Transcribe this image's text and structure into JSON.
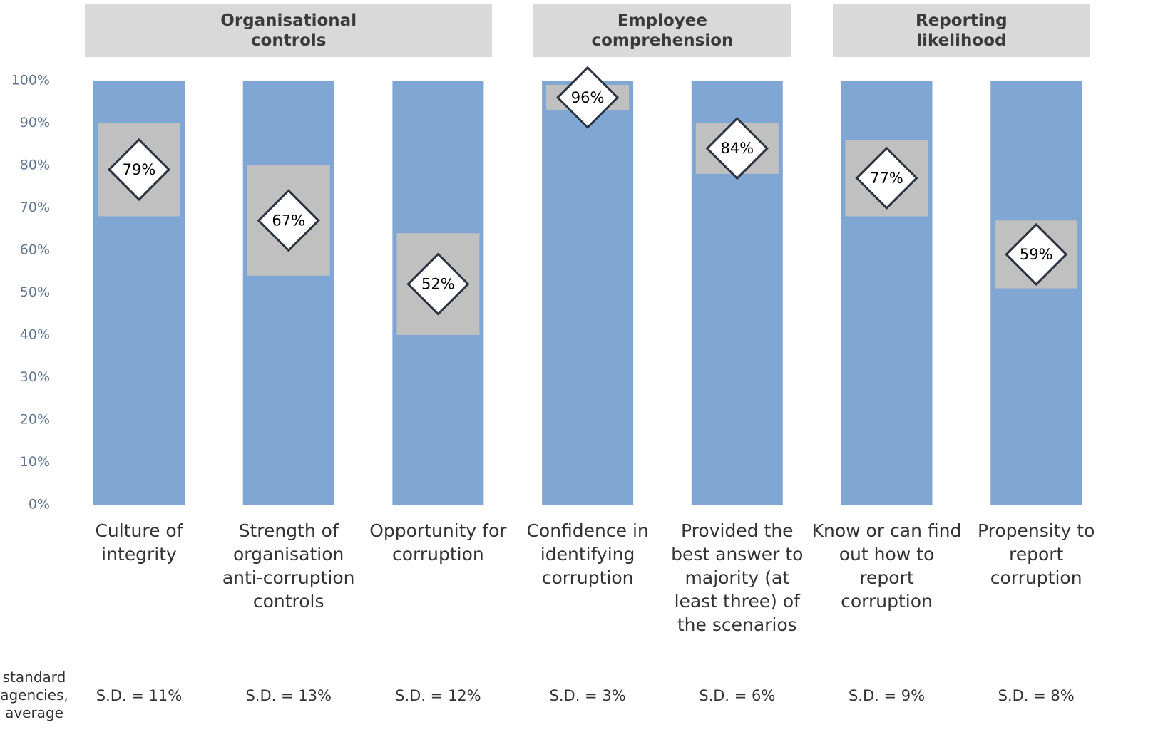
{
  "chart_data": {
    "type": "range-bar",
    "categories": [
      "Culture of integrity",
      "Strength of organisation anti-corruption controls",
      "Opportunity for corruption",
      "Confidence in identifying corruption",
      "Provided the best answer to majority (at least three) of the scenarios",
      "Know or can find out how to report corruption",
      "Propensity to report corruption"
    ],
    "values": [
      79,
      67,
      52,
      96,
      84,
      77,
      59
    ],
    "value_labels": [
      "79%",
      "67%",
      "52%",
      "96%",
      "84%",
      "77%",
      "59%"
    ],
    "sd": [
      11,
      13,
      12,
      3,
      6,
      9,
      8
    ],
    "sd_labels": [
      "S.D. = 11%",
      "S.D. = 13%",
      "S.D. = 12%",
      "S.D. = 3%",
      "S.D. = 6%",
      "S.D. = 9%",
      "S.D. = 8%"
    ],
    "groups": [
      {
        "label": "Organisational controls",
        "count": 3
      },
      {
        "label": "Employee comprehension",
        "count": 2
      },
      {
        "label": "Reporting likelihood",
        "count": 2
      }
    ],
    "row_label": [
      "standard",
      "agencies,",
      "average"
    ],
    "colors": {
      "bar": "#80a6d4",
      "range": "#c0c0c0",
      "marker": "#2b3240",
      "header": "#d9d9d9"
    },
    "ylim": [
      0,
      100
    ],
    "yticks": [
      {
        "value": 0,
        "label": "0%"
      },
      {
        "value": 10,
        "label": "10%"
      },
      {
        "value": 20,
        "label": "20%"
      },
      {
        "value": 30,
        "label": "30%"
      },
      {
        "value": 40,
        "label": "40%"
      },
      {
        "value": 50,
        "label": "50%"
      },
      {
        "value": 60,
        "label": "60%"
      },
      {
        "value": 70,
        "label": "70%"
      },
      {
        "value": 80,
        "label": "80%"
      },
      {
        "value": 90,
        "label": "90%"
      },
      {
        "value": 100,
        "label": "100%"
      }
    ]
  }
}
